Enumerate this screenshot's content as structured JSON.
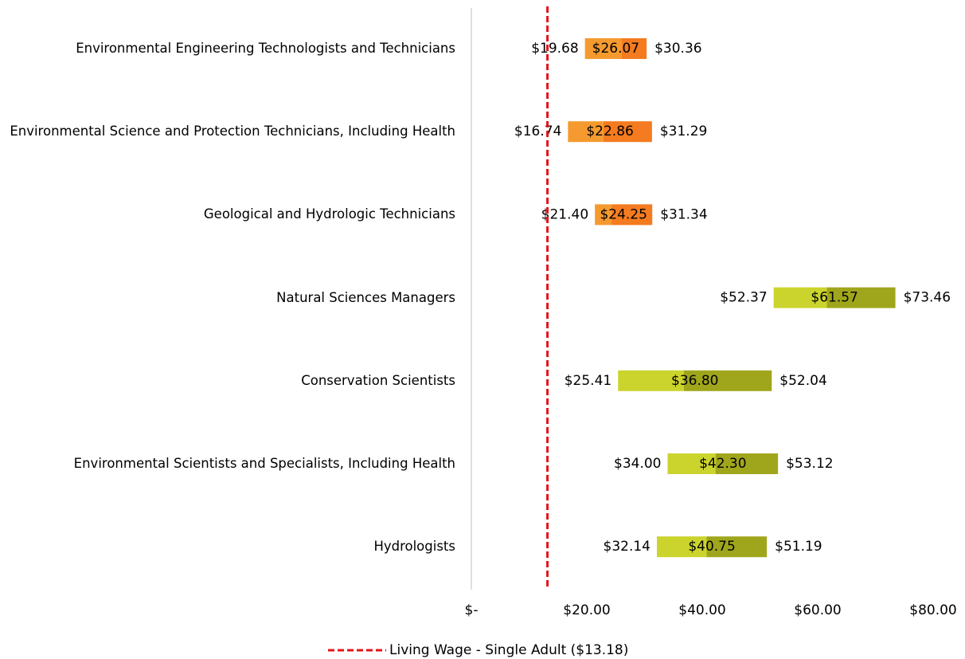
{
  "chart_data": {
    "type": "range_bar",
    "orientation": "horizontal",
    "categories": [
      "Environmental Engineering Technologists and Technicians",
      "Environmental Science and Protection Technicians, Including Health",
      "Geological and Hydrologic Technicians",
      "Natural Sciences Managers",
      "Conservation Scientists",
      "Environmental Scientists and Specialists, Including Health",
      "Hydrologists"
    ],
    "series": [
      {
        "values": [
          19.68,
          16.74,
          21.4,
          52.37,
          25.41,
          34.0,
          32.14
        ],
        "value_labels": [
          "$19.68",
          "$16.74",
          "$21.40",
          "$52.37",
          "$25.41",
          "$34.00",
          "$32.14"
        ]
      },
      {
        "values": [
          26.07,
          22.86,
          24.25,
          61.57,
          36.8,
          42.3,
          40.75
        ],
        "value_labels": [
          "$26.07",
          "$22.86",
          "$24.25",
          "$61.57",
          "$36.80",
          "$42.30",
          "$40.75"
        ],
        "colors": [
          "#f59a2e",
          "#f59a2e",
          "#f59a2e",
          "#cbd42c",
          "#cbd42c",
          "#cbd42c",
          "#cbd42c"
        ]
      },
      {
        "values": [
          30.36,
          31.29,
          31.34,
          73.46,
          52.04,
          53.12,
          51.19
        ],
        "value_labels": [
          "$30.36",
          "$31.29",
          "$31.34",
          "$73.46",
          "$52.04",
          "$53.12",
          "$51.19"
        ],
        "colors": [
          "#f47b20",
          "#f47b20",
          "#f47b20",
          "#a0a61c",
          "#a0a61c",
          "#a0a61c",
          "#a0a61c"
        ]
      }
    ],
    "xlim": [
      0,
      80
    ],
    "xticks": [
      {
        "value": 0,
        "label": "$-"
      },
      {
        "value": 20,
        "label": "$20.00"
      },
      {
        "value": 40,
        "label": "$40.00"
      },
      {
        "value": 60,
        "label": "$60.00"
      },
      {
        "value": 80,
        "label": "$80.00"
      }
    ],
    "reference_line": {
      "value": 13.18,
      "label": "Living Wage - Single Adult ($13.18)",
      "color": "#e3141b"
    }
  }
}
